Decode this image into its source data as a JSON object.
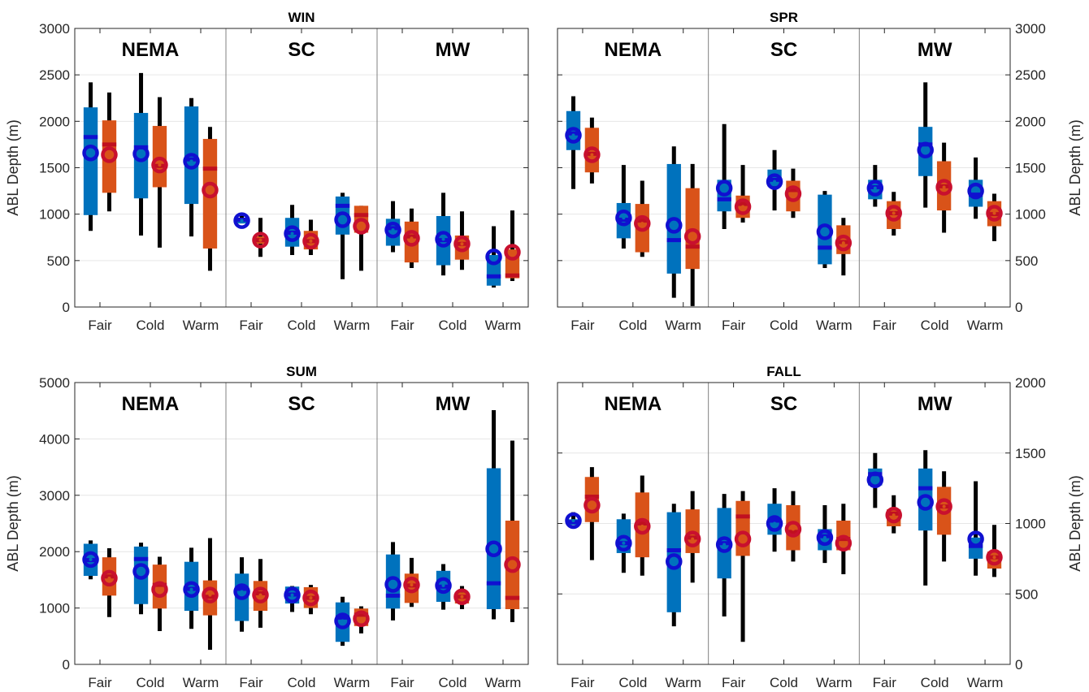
{
  "chart_data": {
    "type": "box",
    "colors": {
      "box_a": "#0072BD",
      "box_b": "#D95319",
      "median_a": "#1010D0",
      "median_b": "#C01020",
      "mean_a": "#1010D0",
      "mean_b": "#C8102E",
      "whisker": "#000000",
      "grid": "#E6E6E6",
      "divider": "#808080"
    },
    "regions": [
      "NEMA",
      "SC",
      "MW"
    ],
    "categories": [
      "Fair",
      "Cold",
      "Warm"
    ],
    "ylabel": "ABL Depth (m)",
    "panels": [
      {
        "title": "WIN",
        "yaxis_side": "left",
        "ylim": [
          0,
          3000
        ],
        "yticks": [
          "0",
          "500",
          "1000",
          "1500",
          "2000",
          "2500",
          "3000"
        ],
        "ytick_values": [
          0,
          500,
          1000,
          1500,
          2000,
          2500,
          3000
        ],
        "boxes": [
          {
            "region": "NEMA",
            "category": "Fair",
            "a": {
              "min": 820,
              "q1": 990,
              "median": 1830,
              "q3": 2150,
              "max": 2420,
              "mean": 1660
            },
            "b": {
              "min": 1030,
              "q1": 1230,
              "median": 1750,
              "q3": 2010,
              "max": 2310,
              "mean": 1640
            }
          },
          {
            "region": "NEMA",
            "category": "Cold",
            "a": {
              "min": 770,
              "q1": 1170,
              "median": 1720,
              "q3": 2090,
              "max": 2520,
              "mean": 1650
            },
            "b": {
              "min": 640,
              "q1": 1290,
              "median": 1520,
              "q3": 1950,
              "max": 2260,
              "mean": 1530
            }
          },
          {
            "region": "NEMA",
            "category": "Warm",
            "a": {
              "min": 760,
              "q1": 1110,
              "median": 1590,
              "q3": 2160,
              "max": 2250,
              "mean": 1570
            },
            "b": {
              "min": 390,
              "q1": 630,
              "median": 1490,
              "q3": 1810,
              "max": 1940,
              "mean": 1260
            }
          },
          {
            "region": "SC",
            "category": "Fair",
            "a": {
              "min": 900,
              "q1": 900,
              "median": 940,
              "q3": 960,
              "max": 1010,
              "mean": 930
            },
            "b": {
              "min": 540,
              "q1": 680,
              "median": 720,
              "q3": 760,
              "max": 960,
              "mean": 720
            }
          },
          {
            "region": "SC",
            "category": "Cold",
            "a": {
              "min": 560,
              "q1": 650,
              "median": 800,
              "q3": 960,
              "max": 1100,
              "mean": 790
            },
            "b": {
              "min": 560,
              "q1": 620,
              "median": 710,
              "q3": 820,
              "max": 940,
              "mean": 710
            }
          },
          {
            "region": "SC",
            "category": "Warm",
            "a": {
              "min": 300,
              "q1": 780,
              "median": 1090,
              "q3": 1190,
              "max": 1230,
              "mean": 940
            },
            "b": {
              "min": 390,
              "q1": 800,
              "median": 990,
              "q3": 1090,
              "max": 1090,
              "mean": 870
            }
          },
          {
            "region": "MW",
            "category": "Fair",
            "a": {
              "min": 590,
              "q1": 660,
              "median": 850,
              "q3": 950,
              "max": 1140,
              "mean": 830
            },
            "b": {
              "min": 420,
              "q1": 480,
              "median": 760,
              "q3": 920,
              "max": 1060,
              "mean": 740
            }
          },
          {
            "region": "MW",
            "category": "Cold",
            "a": {
              "min": 340,
              "q1": 450,
              "median": 720,
              "q3": 980,
              "max": 1230,
              "mean": 730
            },
            "b": {
              "min": 400,
              "q1": 510,
              "median": 680,
              "q3": 770,
              "max": 1030,
              "mean": 680
            }
          },
          {
            "region": "MW",
            "category": "Warm",
            "a": {
              "min": 210,
              "q1": 230,
              "median": 330,
              "q3": 560,
              "max": 870,
              "mean": 540
            },
            "b": {
              "min": 280,
              "q1": 310,
              "median": 340,
              "q3": 620,
              "max": 1040,
              "mean": 590
            }
          }
        ]
      },
      {
        "title": "SPR",
        "yaxis_side": "right",
        "ylim": [
          0,
          3000
        ],
        "yticks": [
          "0",
          "500",
          "1000",
          "1500",
          "2000",
          "2500",
          "3000"
        ],
        "ytick_values": [
          0,
          500,
          1000,
          1500,
          2000,
          2500,
          3000
        ],
        "boxes": [
          {
            "region": "NEMA",
            "category": "Fair",
            "a": {
              "min": 1270,
              "q1": 1690,
              "median": 1870,
              "q3": 2110,
              "max": 2270,
              "mean": 1850
            },
            "b": {
              "min": 1330,
              "q1": 1450,
              "median": 1650,
              "q3": 1930,
              "max": 2040,
              "mean": 1640
            }
          },
          {
            "region": "NEMA",
            "category": "Cold",
            "a": {
              "min": 630,
              "q1": 740,
              "median": 940,
              "q3": 1120,
              "max": 1530,
              "mean": 960
            },
            "b": {
              "min": 540,
              "q1": 590,
              "median": 930,
              "q3": 1110,
              "max": 1360,
              "mean": 900
            }
          },
          {
            "region": "NEMA",
            "category": "Warm",
            "a": {
              "min": 100,
              "q1": 360,
              "median": 720,
              "q3": 1540,
              "max": 1730,
              "mean": 880
            },
            "b": {
              "min": 10,
              "q1": 410,
              "median": 650,
              "q3": 1280,
              "max": 1540,
              "mean": 760
            }
          },
          {
            "region": "SC",
            "category": "Fair",
            "a": {
              "min": 840,
              "q1": 1030,
              "median": 1160,
              "q3": 1370,
              "max": 1970,
              "mean": 1280
            },
            "b": {
              "min": 910,
              "q1": 960,
              "median": 1110,
              "q3": 1200,
              "max": 1530,
              "mean": 1080
            }
          },
          {
            "region": "SC",
            "category": "Cold",
            "a": {
              "min": 1040,
              "q1": 1300,
              "median": 1370,
              "q3": 1480,
              "max": 1690,
              "mean": 1350
            },
            "b": {
              "min": 960,
              "q1": 1030,
              "median": 1260,
              "q3": 1360,
              "max": 1490,
              "mean": 1220
            }
          },
          {
            "region": "SC",
            "category": "Warm",
            "a": {
              "min": 420,
              "q1": 460,
              "median": 640,
              "q3": 1210,
              "max": 1250,
              "mean": 810
            },
            "b": {
              "min": 340,
              "q1": 570,
              "median": 700,
              "q3": 880,
              "max": 960,
              "mean": 690
            }
          },
          {
            "region": "MW",
            "category": "Fair",
            "a": {
              "min": 1080,
              "q1": 1160,
              "median": 1290,
              "q3": 1370,
              "max": 1530,
              "mean": 1280
            },
            "b": {
              "min": 770,
              "q1": 840,
              "median": 1010,
              "q3": 1140,
              "max": 1240,
              "mean": 1010
            }
          },
          {
            "region": "MW",
            "category": "Cold",
            "a": {
              "min": 1070,
              "q1": 1410,
              "median": 1750,
              "q3": 1940,
              "max": 2420,
              "mean": 1690
            },
            "b": {
              "min": 800,
              "q1": 1040,
              "median": 1300,
              "q3": 1570,
              "max": 1770,
              "mean": 1290
            }
          },
          {
            "region": "MW",
            "category": "Warm",
            "a": {
              "min": 950,
              "q1": 1080,
              "median": 1210,
              "q3": 1370,
              "max": 1610,
              "mean": 1250
            },
            "b": {
              "min": 710,
              "q1": 870,
              "median": 1000,
              "q3": 1140,
              "max": 1220,
              "mean": 1010
            }
          }
        ]
      },
      {
        "title": "SUM",
        "yaxis_side": "left",
        "ylim": [
          0,
          5000
        ],
        "yticks": [
          "0",
          "1000",
          "2000",
          "3000",
          "4000",
          "5000"
        ],
        "ytick_values": [
          0,
          1000,
          2000,
          3000,
          4000,
          5000
        ],
        "boxes": [
          {
            "region": "NEMA",
            "category": "Fair",
            "a": {
              "min": 1510,
              "q1": 1570,
              "median": 1850,
              "q3": 2140,
              "max": 2200,
              "mean": 1860
            },
            "b": {
              "min": 840,
              "q1": 1220,
              "median": 1560,
              "q3": 1900,
              "max": 2060,
              "mean": 1530
            }
          },
          {
            "region": "NEMA",
            "category": "Cold",
            "a": {
              "min": 890,
              "q1": 1070,
              "median": 1870,
              "q3": 2090,
              "max": 2160,
              "mean": 1650
            },
            "b": {
              "min": 590,
              "q1": 990,
              "median": 1410,
              "q3": 1770,
              "max": 1910,
              "mean": 1330
            }
          },
          {
            "region": "NEMA",
            "category": "Warm",
            "a": {
              "min": 630,
              "q1": 950,
              "median": 1340,
              "q3": 1820,
              "max": 2070,
              "mean": 1330
            },
            "b": {
              "min": 260,
              "q1": 870,
              "median": 1200,
              "q3": 1490,
              "max": 2240,
              "mean": 1230
            }
          },
          {
            "region": "SC",
            "category": "Fair",
            "a": {
              "min": 580,
              "q1": 770,
              "median": 1340,
              "q3": 1610,
              "max": 1900,
              "mean": 1290
            },
            "b": {
              "min": 650,
              "q1": 950,
              "median": 1260,
              "q3": 1480,
              "max": 1870,
              "mean": 1230
            }
          },
          {
            "region": "SC",
            "category": "Cold",
            "a": {
              "min": 930,
              "q1": 1080,
              "median": 1240,
              "q3": 1380,
              "max": 1390,
              "mean": 1230
            },
            "b": {
              "min": 890,
              "q1": 1000,
              "median": 1180,
              "q3": 1370,
              "max": 1410,
              "mean": 1180
            }
          },
          {
            "region": "SC",
            "category": "Warm",
            "a": {
              "min": 330,
              "q1": 400,
              "median": 830,
              "q3": 1100,
              "max": 1200,
              "mean": 770
            },
            "b": {
              "min": 550,
              "q1": 680,
              "median": 880,
              "q3": 990,
              "max": 1030,
              "mean": 810
            }
          },
          {
            "region": "MW",
            "category": "Fair",
            "a": {
              "min": 780,
              "q1": 990,
              "median": 1220,
              "q3": 1950,
              "max": 2170,
              "mean": 1420
            },
            "b": {
              "min": 1020,
              "q1": 1090,
              "median": 1400,
              "q3": 1610,
              "max": 1890,
              "mean": 1410
            }
          },
          {
            "region": "MW",
            "category": "Cold",
            "a": {
              "min": 970,
              "q1": 1110,
              "median": 1380,
              "q3": 1660,
              "max": 1780,
              "mean": 1400
            },
            "b": {
              "min": 980,
              "q1": 1080,
              "median": 1200,
              "q3": 1280,
              "max": 1390,
              "mean": 1200
            }
          },
          {
            "region": "MW",
            "category": "Warm",
            "a": {
              "min": 800,
              "q1": 980,
              "median": 1440,
              "q3": 3480,
              "max": 4510,
              "mean": 2050
            },
            "b": {
              "min": 750,
              "q1": 980,
              "median": 1180,
              "q3": 2550,
              "max": 3970,
              "mean": 1770
            }
          }
        ]
      },
      {
        "title": "FALL",
        "yaxis_side": "right",
        "ylim": [
          0,
          2000
        ],
        "yticks": [
          "0",
          "500",
          "1000",
          "1500",
          "2000"
        ],
        "ytick_values": [
          0,
          500,
          1000,
          1500,
          2000
        ],
        "boxes": [
          {
            "region": "NEMA",
            "category": "Fair",
            "a": {
              "min": 990,
              "q1": 990,
              "median": 1010,
              "q3": 1030,
              "max": 1080,
              "mean": 1020
            },
            "b": {
              "min": 740,
              "q1": 1010,
              "median": 1190,
              "q3": 1330,
              "max": 1400,
              "mean": 1130
            }
          },
          {
            "region": "NEMA",
            "category": "Cold",
            "a": {
              "min": 650,
              "q1": 790,
              "median": 860,
              "q3": 1030,
              "max": 1070,
              "mean": 860
            },
            "b": {
              "min": 630,
              "q1": 760,
              "median": 1000,
              "q3": 1220,
              "max": 1340,
              "mean": 980
            }
          },
          {
            "region": "NEMA",
            "category": "Warm",
            "a": {
              "min": 270,
              "q1": 370,
              "median": 810,
              "q3": 1080,
              "max": 1140,
              "mean": 730
            },
            "b": {
              "min": 580,
              "q1": 790,
              "median": 900,
              "q3": 1100,
              "max": 1230,
              "mean": 890
            }
          },
          {
            "region": "SC",
            "category": "Fair",
            "a": {
              "min": 340,
              "q1": 610,
              "median": 860,
              "q3": 1110,
              "max": 1210,
              "mean": 850
            },
            "b": {
              "min": 160,
              "q1": 770,
              "median": 1050,
              "q3": 1160,
              "max": 1230,
              "mean": 890
            }
          },
          {
            "region": "SC",
            "category": "Cold",
            "a": {
              "min": 800,
              "q1": 920,
              "median": 1020,
              "q3": 1140,
              "max": 1250,
              "mean": 1000
            },
            "b": {
              "min": 730,
              "q1": 810,
              "median": 940,
              "q3": 1130,
              "max": 1230,
              "mean": 960
            }
          },
          {
            "region": "SC",
            "category": "Warm",
            "a": {
              "min": 720,
              "q1": 810,
              "median": 910,
              "q3": 960,
              "max": 1130,
              "mean": 900
            },
            "b": {
              "min": 640,
              "q1": 810,
              "median": 890,
              "q3": 1020,
              "max": 1140,
              "mean": 860
            }
          },
          {
            "region": "MW",
            "category": "Fair",
            "a": {
              "min": 1110,
              "q1": 1270,
              "median": 1350,
              "q3": 1390,
              "max": 1500,
              "mean": 1310
            },
            "b": {
              "min": 930,
              "q1": 980,
              "median": 1070,
              "q3": 1100,
              "max": 1200,
              "mean": 1060
            }
          },
          {
            "region": "MW",
            "category": "Cold",
            "a": {
              "min": 560,
              "q1": 950,
              "median": 1250,
              "q3": 1390,
              "max": 1520,
              "mean": 1150
            },
            "b": {
              "min": 730,
              "q1": 920,
              "median": 1120,
              "q3": 1260,
              "max": 1370,
              "mean": 1120
            }
          },
          {
            "region": "MW",
            "category": "Warm",
            "a": {
              "min": 630,
              "q1": 750,
              "median": 840,
              "q3": 900,
              "max": 1300,
              "mean": 890
            },
            "b": {
              "min": 620,
              "q1": 680,
              "median": 760,
              "q3": 800,
              "max": 990,
              "mean": 760
            }
          }
        ]
      }
    ]
  }
}
